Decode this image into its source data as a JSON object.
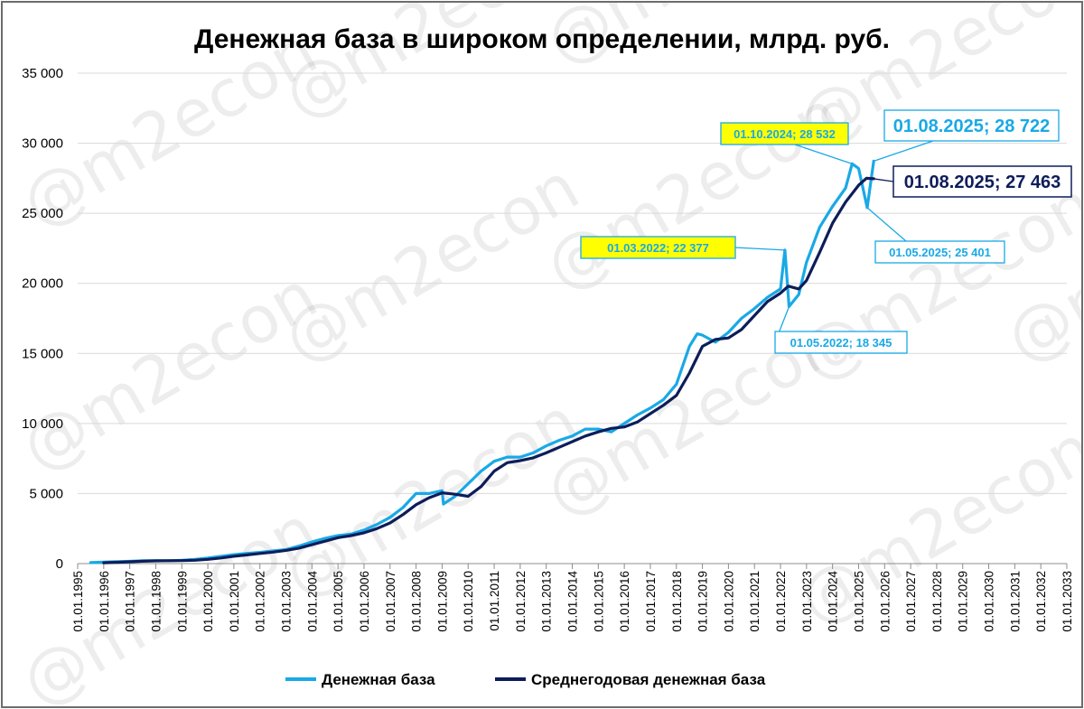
{
  "chart_data": {
    "type": "line",
    "title": "Денежная база в широком определении, млрд. руб.",
    "xlabel": "",
    "ylabel": "",
    "ylim": [
      0,
      35000
    ],
    "yticks": [
      0,
      5000,
      10000,
      15000,
      20000,
      25000,
      30000,
      35000
    ],
    "ytick_labels": [
      "0",
      "5 000",
      "10 000",
      "15 000",
      "20 000",
      "25 000",
      "30 000",
      "35 000"
    ],
    "xlim": [
      1995,
      2033
    ],
    "xtick_labels": [
      "01.01.1995",
      "01.01.1996",
      "01.01.1997",
      "01.01.1998",
      "01.01.1999",
      "01.01.2000",
      "01.01.2001",
      "01.01.2002",
      "01.01.2003",
      "01.01.2004",
      "01.01.2005",
      "01.01.2006",
      "01.01.2007",
      "01.01.2008",
      "01.01.2009",
      "01.01.2010",
      "01.01.2011",
      "01.01.2012",
      "01.01.2013",
      "01.01.2014",
      "01.01.2015",
      "01.01.2016",
      "01.01.2017",
      "01.01.2018",
      "01.01.2019",
      "01.01.2020",
      "01.01.2021",
      "01.01.2022",
      "01.01.2023",
      "01.01.2024",
      "01.01.2025",
      "01.01.2026",
      "01.01.2027",
      "01.01.2028",
      "01.01.2029",
      "01.01.2030",
      "01.01.2031",
      "01.01.2032",
      "01.01.2033"
    ],
    "grid": true,
    "legend_position": "bottom",
    "series": [
      {
        "name": "Денежная база",
        "color": "#19a9e6",
        "points": [
          [
            1995.5,
            70
          ],
          [
            1996.0,
            110
          ],
          [
            1996.5,
            140
          ],
          [
            1997.0,
            160
          ],
          [
            1997.5,
            200
          ],
          [
            1998.0,
            210
          ],
          [
            1998.5,
            200
          ],
          [
            1999.0,
            240
          ],
          [
            1999.5,
            300
          ],
          [
            2000.0,
            400
          ],
          [
            2000.5,
            520
          ],
          [
            2001.0,
            640
          ],
          [
            2001.5,
            730
          ],
          [
            2002.0,
            800
          ],
          [
            2002.5,
            900
          ],
          [
            2003.0,
            1000
          ],
          [
            2003.5,
            1250
          ],
          [
            2004.0,
            1550
          ],
          [
            2004.5,
            1800
          ],
          [
            2005.0,
            2000
          ],
          [
            2005.5,
            2100
          ],
          [
            2006.0,
            2400
          ],
          [
            2006.5,
            2800
          ],
          [
            2007.0,
            3300
          ],
          [
            2007.5,
            4000
          ],
          [
            2008.0,
            5000
          ],
          [
            2008.5,
            5000
          ],
          [
            2009.0,
            5200
          ],
          [
            2009.05,
            4250
          ],
          [
            2009.5,
            4800
          ],
          [
            2010.0,
            5700
          ],
          [
            2010.5,
            6600
          ],
          [
            2011.0,
            7300
          ],
          [
            2011.5,
            7600
          ],
          [
            2012.0,
            7600
          ],
          [
            2012.5,
            7900
          ],
          [
            2013.0,
            8400
          ],
          [
            2013.5,
            8800
          ],
          [
            2014.0,
            9100
          ],
          [
            2014.5,
            9600
          ],
          [
            2015.0,
            9600
          ],
          [
            2015.5,
            9400
          ],
          [
            2016.0,
            10000
          ],
          [
            2016.5,
            10600
          ],
          [
            2017.0,
            11100
          ],
          [
            2017.5,
            11700
          ],
          [
            2018.0,
            12800
          ],
          [
            2018.5,
            15500
          ],
          [
            2018.8,
            16400
          ],
          [
            2019.0,
            16300
          ],
          [
            2019.5,
            15800
          ],
          [
            2020.0,
            16500
          ],
          [
            2020.5,
            17500
          ],
          [
            2021.0,
            18200
          ],
          [
            2021.5,
            19000
          ],
          [
            2022.0,
            19600
          ],
          [
            2022.17,
            22377
          ],
          [
            2022.33,
            18345
          ],
          [
            2022.7,
            19200
          ],
          [
            2023.0,
            21500
          ],
          [
            2023.5,
            24000
          ],
          [
            2024.0,
            25500
          ],
          [
            2024.5,
            26800
          ],
          [
            2024.75,
            28532
          ],
          [
            2025.0,
            28200
          ],
          [
            2025.33,
            25401
          ],
          [
            2025.58,
            28722
          ]
        ]
      },
      {
        "name": "Среднегодовая денежная база",
        "color": "#0d1d5a",
        "points": [
          [
            1996.0,
            60
          ],
          [
            1996.5,
            90
          ],
          [
            1997.0,
            130
          ],
          [
            1997.5,
            170
          ],
          [
            1998.0,
            195
          ],
          [
            1998.5,
            205
          ],
          [
            1999.0,
            215
          ],
          [
            1999.5,
            240
          ],
          [
            2000.0,
            300
          ],
          [
            2000.5,
            400
          ],
          [
            2001.0,
            520
          ],
          [
            2001.5,
            620
          ],
          [
            2002.0,
            720
          ],
          [
            2002.5,
            820
          ],
          [
            2003.0,
            940
          ],
          [
            2003.5,
            1100
          ],
          [
            2004.0,
            1350
          ],
          [
            2004.5,
            1600
          ],
          [
            2005.0,
            1850
          ],
          [
            2005.5,
            2000
          ],
          [
            2006.0,
            2200
          ],
          [
            2006.5,
            2500
          ],
          [
            2007.0,
            2900
          ],
          [
            2007.5,
            3500
          ],
          [
            2008.0,
            4200
          ],
          [
            2008.5,
            4700
          ],
          [
            2009.0,
            5050
          ],
          [
            2009.5,
            4950
          ],
          [
            2010.0,
            4800
          ],
          [
            2010.5,
            5500
          ],
          [
            2011.0,
            6600
          ],
          [
            2011.5,
            7200
          ],
          [
            2012.0,
            7350
          ],
          [
            2012.5,
            7550
          ],
          [
            2013.0,
            7900
          ],
          [
            2013.5,
            8300
          ],
          [
            2014.0,
            8700
          ],
          [
            2014.5,
            9100
          ],
          [
            2015.0,
            9400
          ],
          [
            2015.5,
            9650
          ],
          [
            2016.0,
            9750
          ],
          [
            2016.5,
            10100
          ],
          [
            2017.0,
            10700
          ],
          [
            2017.5,
            11300
          ],
          [
            2018.0,
            12000
          ],
          [
            2018.5,
            13600
          ],
          [
            2019.0,
            15500
          ],
          [
            2019.5,
            16000
          ],
          [
            2020.0,
            16100
          ],
          [
            2020.5,
            16700
          ],
          [
            2021.0,
            17700
          ],
          [
            2021.5,
            18700
          ],
          [
            2022.0,
            19300
          ],
          [
            2022.3,
            19800
          ],
          [
            2022.7,
            19600
          ],
          [
            2023.0,
            20200
          ],
          [
            2023.5,
            22200
          ],
          [
            2024.0,
            24300
          ],
          [
            2024.5,
            25800
          ],
          [
            2025.0,
            27000
          ],
          [
            2025.3,
            27500
          ],
          [
            2025.58,
            27463
          ]
        ]
      }
    ],
    "annotations": [
      {
        "text": "01.03.2022;  22 377",
        "x": 2022.17,
        "y": 22377,
        "style": "yellow"
      },
      {
        "text": "01.05.2022;  18 345",
        "x": 2022.33,
        "y": 18345,
        "style": "white"
      },
      {
        "text": "01.10.2024;  28 532",
        "x": 2024.75,
        "y": 28532,
        "style": "yellow"
      },
      {
        "text": "01.05.2025;  25 401",
        "x": 2025.33,
        "y": 25401,
        "style": "white"
      },
      {
        "text": "01.08.2025;  28 722",
        "x": 2025.58,
        "y": 28722,
        "style": "big-light"
      },
      {
        "text": "01.08.2025;  27 463",
        "x": 2025.58,
        "y": 27463,
        "style": "big-dark"
      }
    ]
  },
  "watermark": "@m2econ",
  "colors": {
    "annotation_yellow": "#ffff00",
    "annotation_border": "#19a9e6",
    "annotation_text_light": "#19a9e6",
    "annotation_text_dark": "#0d1d5a"
  }
}
